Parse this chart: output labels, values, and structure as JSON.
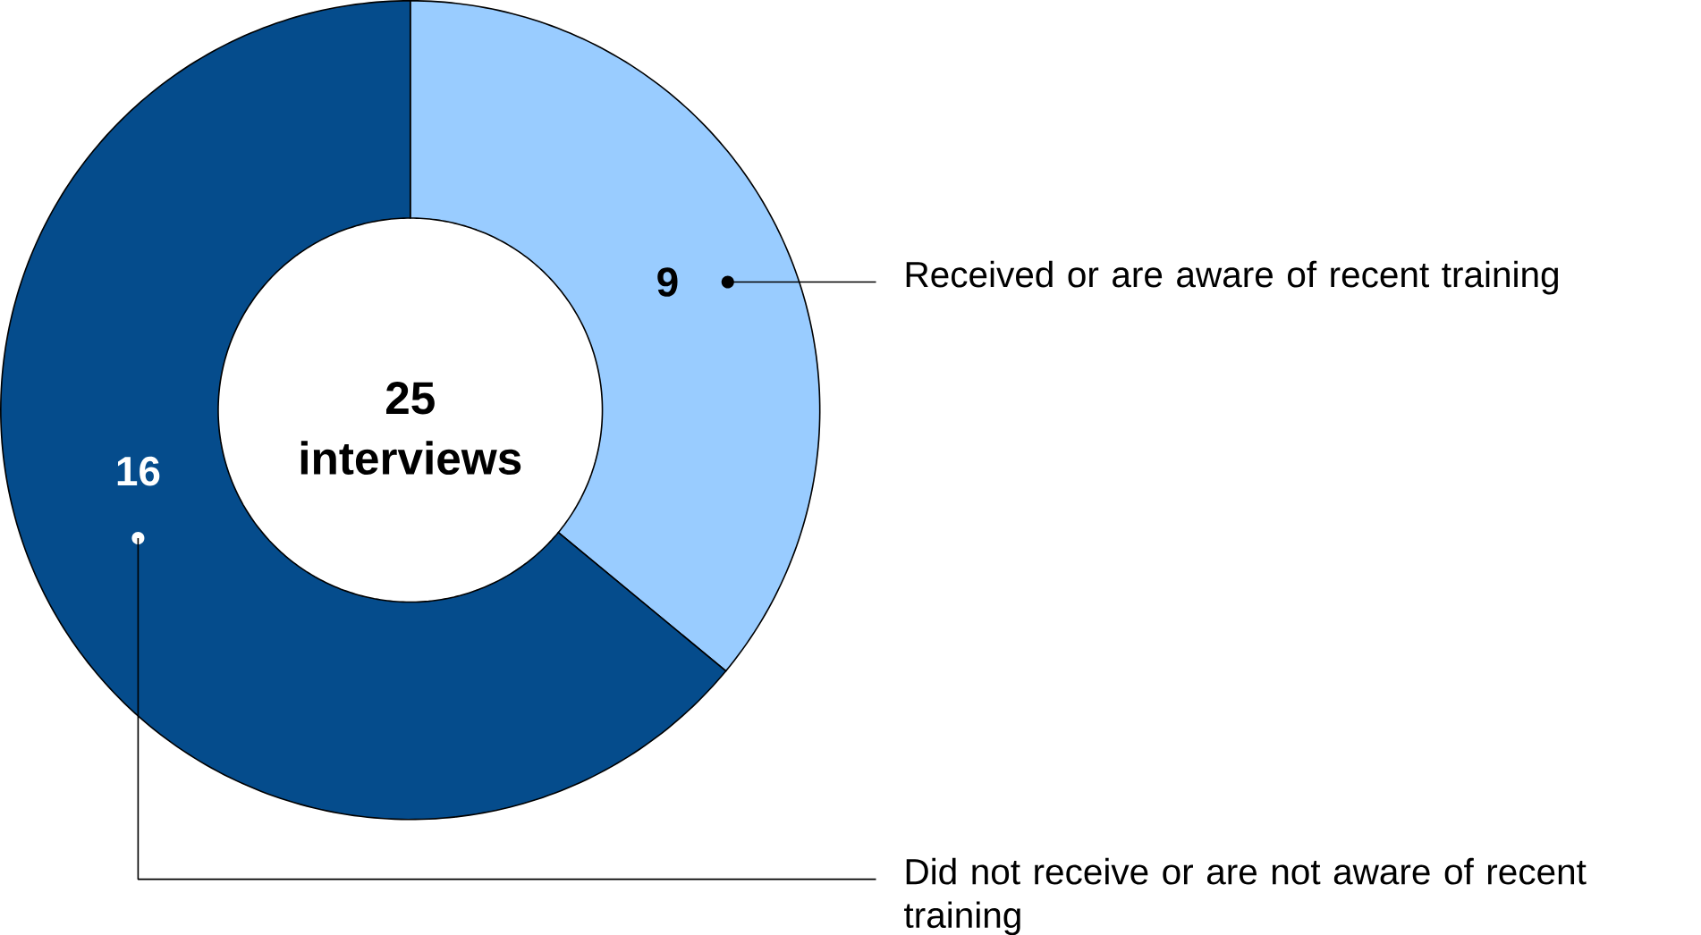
{
  "chart_data": {
    "type": "donut",
    "categories": [
      "Received or are aware of recent training",
      "Did not receive or are not aware of recent training"
    ],
    "values": [
      9,
      16
    ],
    "colors": [
      "#99ccff",
      "#054c8c"
    ],
    "data_labels": true,
    "annotations": [
      "25 interviews"
    ]
  }
}
